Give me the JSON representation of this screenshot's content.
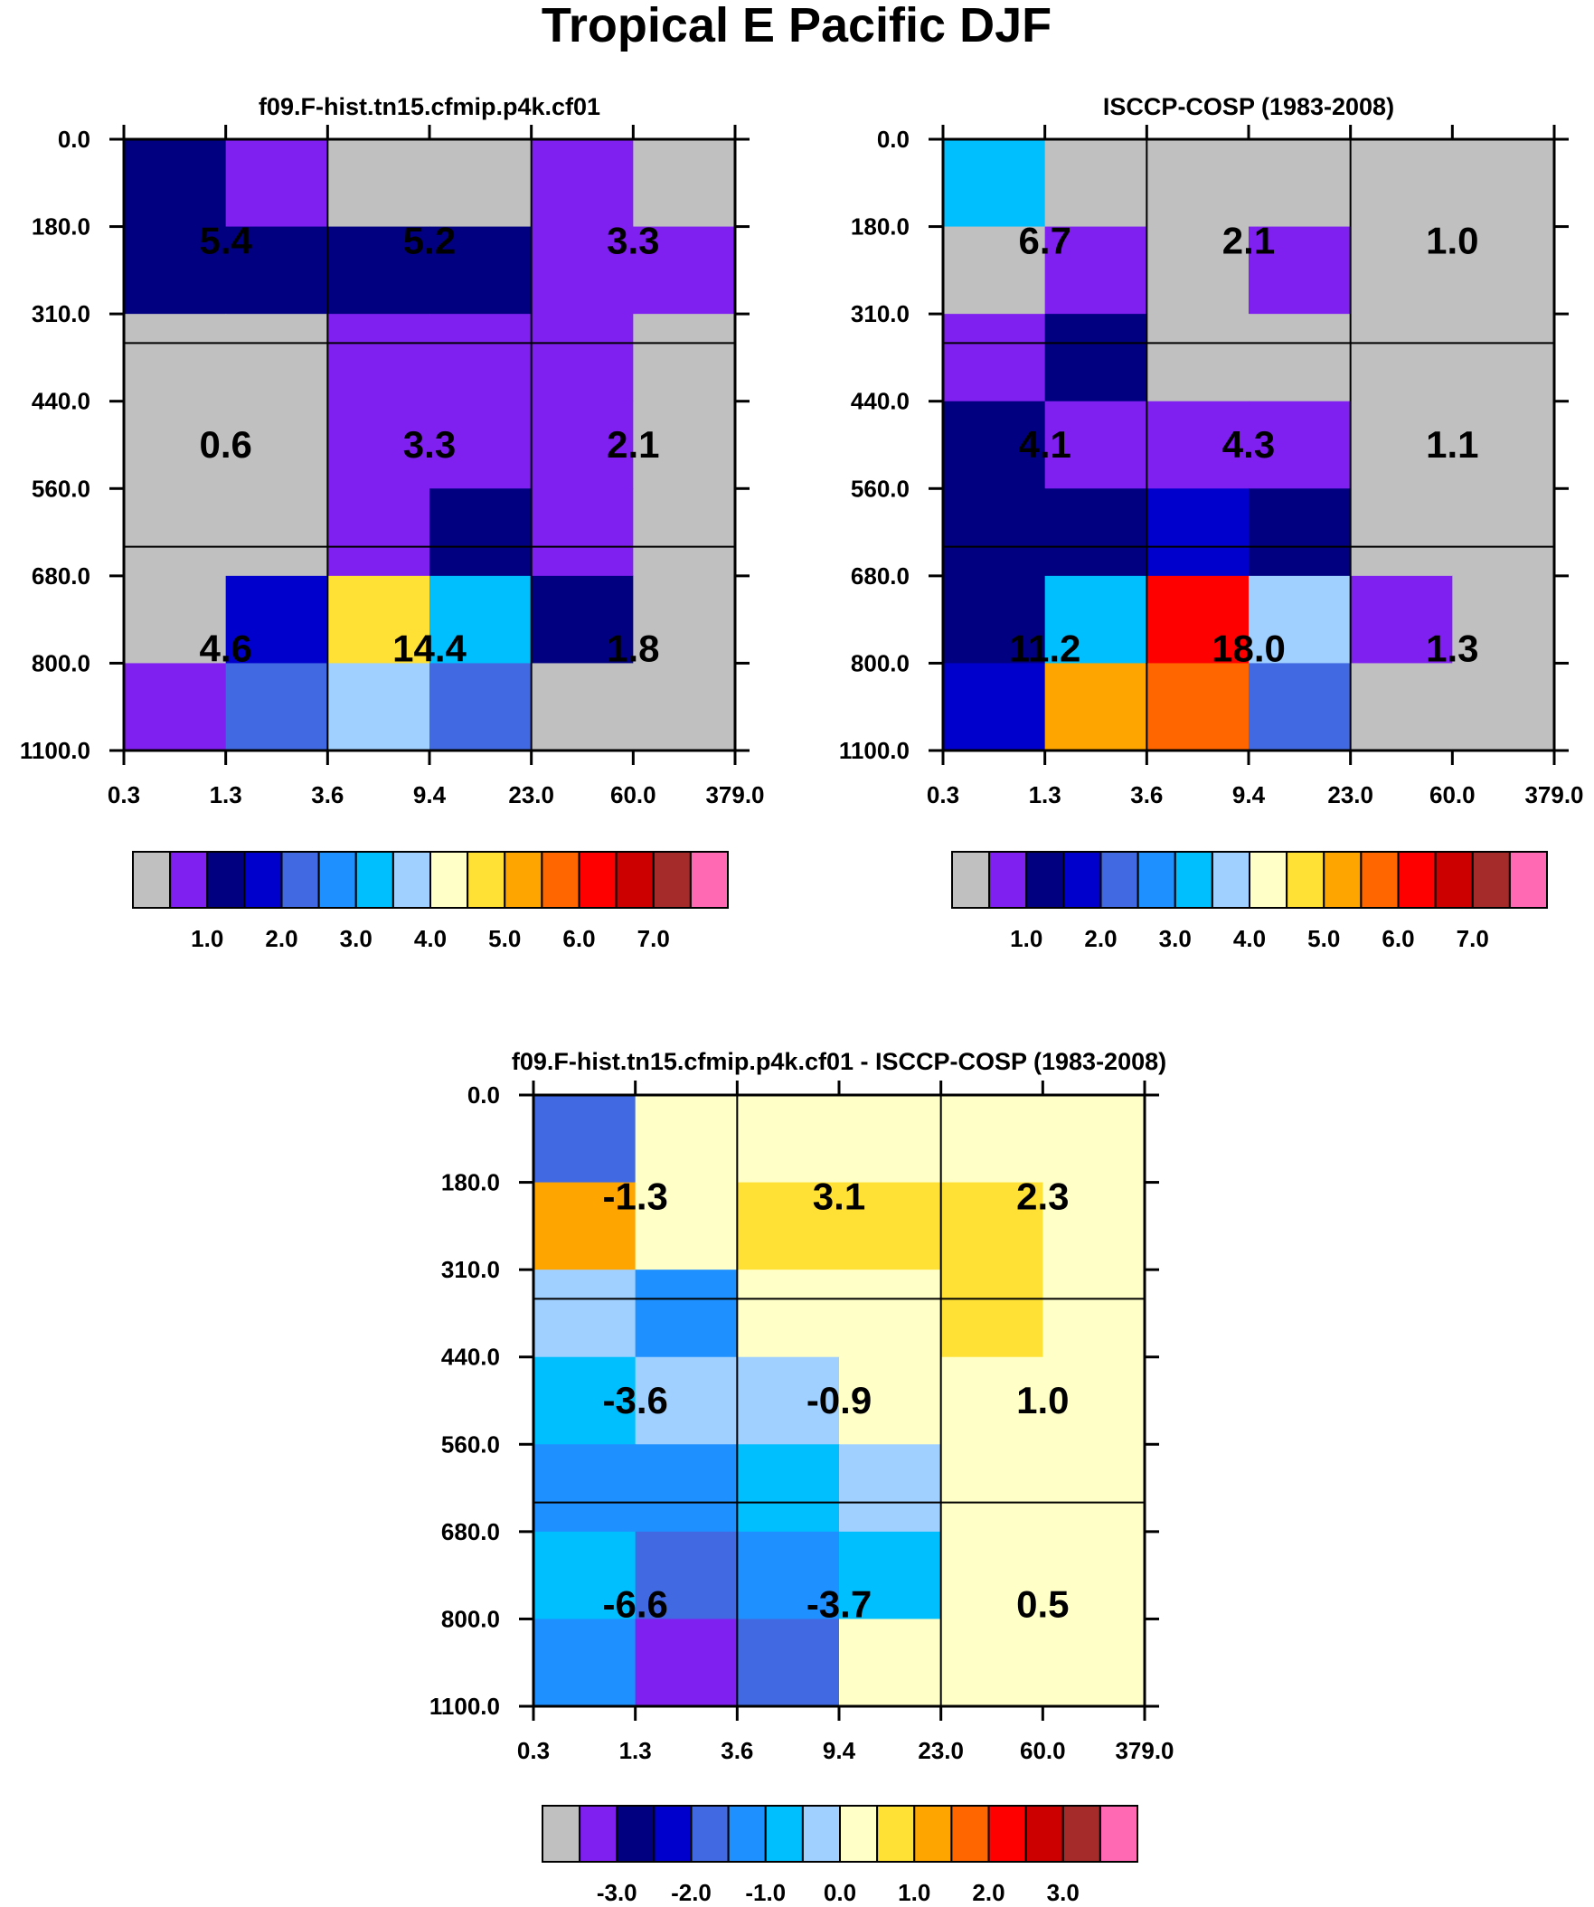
{
  "figure_title": "Tropical E Pacific DJF",
  "chart_data": [
    {
      "type": "heatmap",
      "title": "f09.F-hist.tn15.cfmip.p4k.cf01",
      "x_tick_labels": [
        "0.3",
        "1.3",
        "3.6",
        "9.4",
        "23.0",
        "60.0",
        "379.0"
      ],
      "y_tick_labels": [
        "0.0",
        "180.0",
        "310.0",
        "440.0",
        "560.0",
        "680.0",
        "800.0",
        "1100.0"
      ],
      "cell_colors": [
        [
          "#000080",
          "#8020f0",
          "#c0c0c0",
          "#c0c0c0",
          "#8020f0",
          "#c0c0c0"
        ],
        [
          "#000080",
          "#000080",
          "#000080",
          "#000080",
          "#8020f0",
          "#8020f0"
        ],
        [
          "#c0c0c0",
          "#c0c0c0",
          "#8020f0",
          "#8020f0",
          "#8020f0",
          "#c0c0c0"
        ],
        [
          "#c0c0c0",
          "#c0c0c0",
          "#8020f0",
          "#8020f0",
          "#8020f0",
          "#c0c0c0"
        ],
        [
          "#c0c0c0",
          "#c0c0c0",
          "#8020f0",
          "#000080",
          "#8020f0",
          "#c0c0c0"
        ],
        [
          "#c0c0c0",
          "#0000cd",
          "#ffe135",
          "#00bfff",
          "#000080",
          "#c0c0c0"
        ],
        [
          "#8020f0",
          "#4169e1",
          "#a0d0ff",
          "#4169e1",
          "#c0c0c0",
          "#c0c0c0"
        ]
      ],
      "block_values": [
        [
          "5.4",
          "5.2",
          "3.3"
        ],
        [
          "0.6",
          "3.3",
          "2.1"
        ],
        [
          "4.6",
          "14.4",
          "1.8"
        ]
      ],
      "colorbar": {
        "colors": [
          "#c0c0c0",
          "#8020f0",
          "#000080",
          "#0000cd",
          "#4169e1",
          "#1e90ff",
          "#00bfff",
          "#a0d0ff",
          "#ffffc8",
          "#ffe135",
          "#ffa500",
          "#ff6600",
          "#ff0000",
          "#cd0000",
          "#a52a2a",
          "#ff69b4"
        ],
        "labels": [
          "1.0",
          "2.0",
          "3.0",
          "4.0",
          "5.0",
          "6.0",
          "7.0"
        ],
        "first_label_box": 1
      }
    },
    {
      "type": "heatmap",
      "title": "ISCCP-COSP (1983-2008)",
      "x_tick_labels": [
        "0.3",
        "1.3",
        "3.6",
        "9.4",
        "23.0",
        "60.0",
        "379.0"
      ],
      "y_tick_labels": [
        "0.0",
        "180.0",
        "310.0",
        "440.0",
        "560.0",
        "680.0",
        "800.0",
        "1100.0"
      ],
      "cell_colors": [
        [
          "#00bfff",
          "#c0c0c0",
          "#c0c0c0",
          "#c0c0c0",
          "#c0c0c0",
          "#c0c0c0"
        ],
        [
          "#c0c0c0",
          "#8020f0",
          "#c0c0c0",
          "#8020f0",
          "#c0c0c0",
          "#c0c0c0"
        ],
        [
          "#8020f0",
          "#000080",
          "#c0c0c0",
          "#c0c0c0",
          "#c0c0c0",
          "#c0c0c0"
        ],
        [
          "#000080",
          "#8020f0",
          "#8020f0",
          "#8020f0",
          "#c0c0c0",
          "#c0c0c0"
        ],
        [
          "#000080",
          "#000080",
          "#0000cd",
          "#000080",
          "#c0c0c0",
          "#c0c0c0"
        ],
        [
          "#000080",
          "#00bfff",
          "#ff0000",
          "#a0d0ff",
          "#8020f0",
          "#c0c0c0"
        ],
        [
          "#0000cd",
          "#ffa500",
          "#ff6600",
          "#4169e1",
          "#c0c0c0",
          "#c0c0c0"
        ]
      ],
      "block_values": [
        [
          "6.7",
          "2.1",
          "1.0"
        ],
        [
          "4.1",
          "4.3",
          "1.1"
        ],
        [
          "11.2",
          "18.0",
          "1.3"
        ]
      ],
      "colorbar": {
        "colors": [
          "#c0c0c0",
          "#8020f0",
          "#000080",
          "#0000cd",
          "#4169e1",
          "#1e90ff",
          "#00bfff",
          "#a0d0ff",
          "#ffffc8",
          "#ffe135",
          "#ffa500",
          "#ff6600",
          "#ff0000",
          "#cd0000",
          "#a52a2a",
          "#ff69b4"
        ],
        "labels": [
          "1.0",
          "2.0",
          "3.0",
          "4.0",
          "5.0",
          "6.0",
          "7.0"
        ],
        "first_label_box": 1
      }
    },
    {
      "type": "heatmap",
      "title": "f09.F-hist.tn15.cfmip.p4k.cf01 - ISCCP-COSP (1983-2008)",
      "x_tick_labels": [
        "0.3",
        "1.3",
        "3.6",
        "9.4",
        "23.0",
        "60.0",
        "379.0"
      ],
      "y_tick_labels": [
        "0.0",
        "180.0",
        "310.0",
        "440.0",
        "560.0",
        "680.0",
        "800.0",
        "1100.0"
      ],
      "cell_colors": [
        [
          "#4169e1",
          "#ffffc8",
          "#ffffc8",
          "#ffffc8",
          "#ffffc8",
          "#ffffc8"
        ],
        [
          "#ffa500",
          "#ffffc8",
          "#ffe135",
          "#ffe135",
          "#ffe135",
          "#ffffc8"
        ],
        [
          "#a0d0ff",
          "#1e90ff",
          "#ffffc8",
          "#ffffc8",
          "#ffe135",
          "#ffffc8"
        ],
        [
          "#00bfff",
          "#a0d0ff",
          "#a0d0ff",
          "#ffffc8",
          "#ffffc8",
          "#ffffc8"
        ],
        [
          "#1e90ff",
          "#1e90ff",
          "#00bfff",
          "#a0d0ff",
          "#ffffc8",
          "#ffffc8"
        ],
        [
          "#00bfff",
          "#4169e1",
          "#1e90ff",
          "#00bfff",
          "#ffffc8",
          "#ffffc8"
        ],
        [
          "#1e90ff",
          "#8020f0",
          "#4169e1",
          "#ffffc8",
          "#ffffc8",
          "#ffffc8"
        ]
      ],
      "block_values": [
        [
          "-1.3",
          "3.1",
          "2.3"
        ],
        [
          "-3.6",
          "-0.9",
          "1.0"
        ],
        [
          "-6.6",
          "-3.7",
          "0.5"
        ]
      ],
      "colorbar": {
        "colors": [
          "#c0c0c0",
          "#8020f0",
          "#000080",
          "#0000cd",
          "#4169e1",
          "#1e90ff",
          "#00bfff",
          "#a0d0ff",
          "#ffffc8",
          "#ffe135",
          "#ffa500",
          "#ff6600",
          "#ff0000",
          "#cd0000",
          "#a52a2a",
          "#ff69b4"
        ],
        "labels": [
          "-3.0",
          "-2.0",
          "-1.0",
          "0.0",
          "1.0",
          "2.0",
          "3.0"
        ],
        "first_label_box": 1
      }
    }
  ]
}
